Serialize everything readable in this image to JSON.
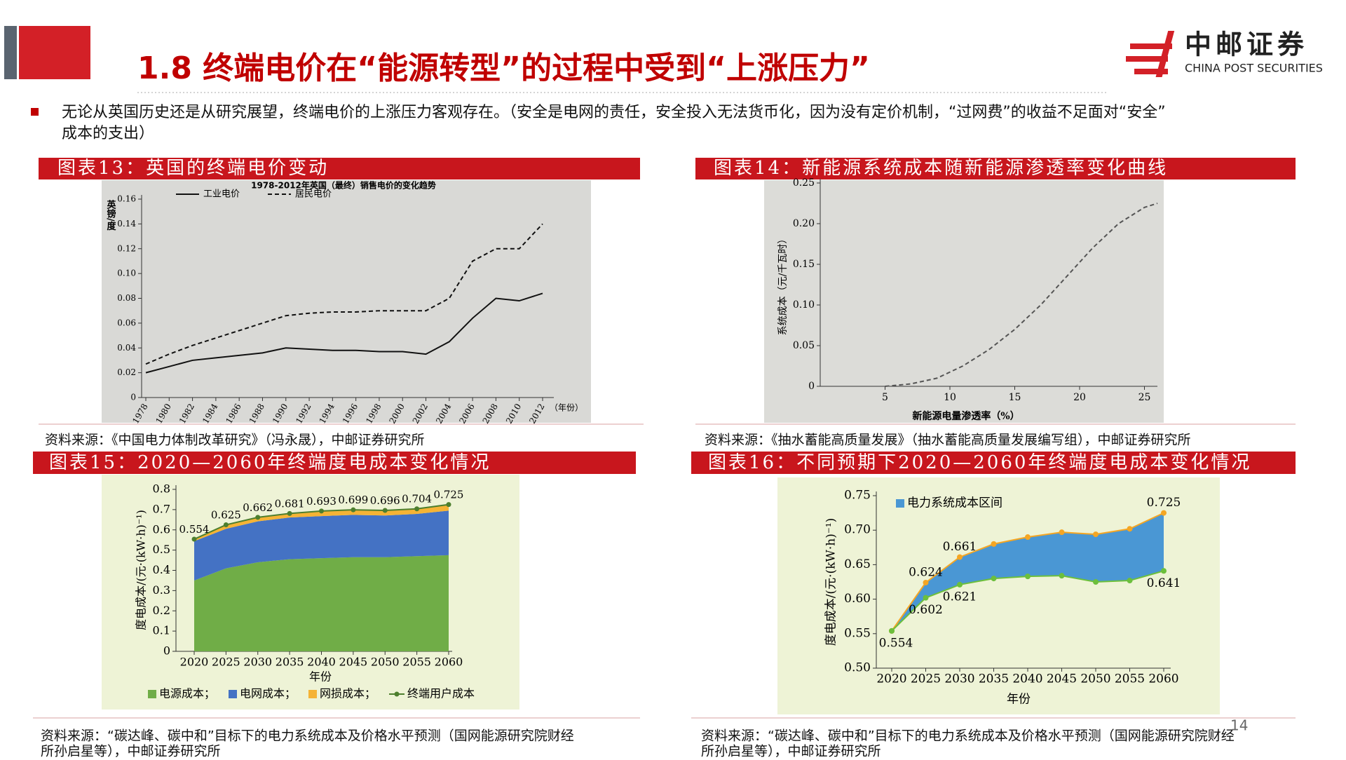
{
  "header": {
    "title": "1.8 终端电价在“能源转型”的过程中受到“上涨压力”",
    "logo_cn": "中邮证券",
    "logo_en": "CHINA POST SECURITIES"
  },
  "bullet": [
    "无论从英国历史还是从研究展望，终端电价的上涨压力客观存在。（安全是电网的责任，安全投入无法货币化，因为没有定价机制，“过网费”的收益不足面对“安全”",
    "成本的支出）"
  ],
  "panels": [
    {
      "caption": "图表13：英国的终端电价变动",
      "source": [
        "资料来源：《中国电力体制改革研究》（冯永晟），中邮证券研究所"
      ]
    },
    {
      "caption": "图表14：新能源系统成本随新能源渗透率变化曲线",
      "source": [
        "资料来源：《抽水蓄能高质量发展》（抽水蓄能高质量发展编写组），中邮证券研究所"
      ]
    },
    {
      "caption": "图表15：2020—2060年终端度电成本变化情况",
      "source": [
        "资料来源：“碳达峰、碳中和”目标下的电力系统成本及价格水平预测（国网能源研究院财经",
        "所孙启星等），中邮证券研究所"
      ]
    },
    {
      "caption": "图表16：不同预期下2020—2060年终端度电成本变化情况",
      "source": [
        "资料来源：“碳达峰、碳中和”目标下的电力系统成本及价格水平预测（国网能源研究院财经",
        "所孙启星等），中邮证券研究所"
      ]
    }
  ],
  "page_number": "14",
  "chart_data": [
    {
      "type": "line",
      "title": "1978-2012年英国（最终）销售电价的变化趋势",
      "y_label": "英镑/度",
      "x_label": "（年份）",
      "categories": [
        "1978",
        "1980",
        "1982",
        "1984",
        "1986",
        "1988",
        "1990",
        "1992",
        "1994",
        "1996",
        "1998",
        "2000",
        "2002",
        "2004",
        "2006",
        "2008",
        "2010",
        "2012"
      ],
      "ylim": [
        0,
        0.16
      ],
      "yticks": [
        0,
        0.02,
        0.04,
        0.06,
        0.08,
        {
          "value": 0.1,
          "label": "0.10"
        },
        0.12,
        0.14,
        0.16
      ],
      "series": [
        {
          "name": "工业电价",
          "color": "#111111",
          "dash": false,
          "values": [
            0.02,
            0.025,
            0.03,
            0.032,
            0.034,
            0.036,
            0.04,
            0.039,
            0.038,
            0.038,
            0.037,
            0.037,
            0.035,
            0.045,
            0.064,
            0.08,
            0.078,
            0.084
          ]
        },
        {
          "name": "居民电价",
          "color": "#111111",
          "dash": true,
          "values": [
            0.027,
            0.035,
            0.042,
            0.048,
            0.054,
            0.06,
            0.066,
            0.068,
            0.069,
            0.069,
            0.07,
            0.07,
            0.07,
            0.08,
            0.11,
            0.12,
            0.12,
            0.14
          ]
        }
      ]
    },
    {
      "type": "line",
      "y_label": "系统成本（元/千瓦时）",
      "x_label": "新能源电量渗透率（%）",
      "xlim": [
        0,
        26
      ],
      "xticks": [
        5,
        10,
        15,
        20,
        25
      ],
      "ylim": [
        0,
        0.25
      ],
      "yticks": [
        0,
        0.05,
        {
          "value": 0.1,
          "label": "0.10"
        },
        0.15,
        {
          "value": 0.2,
          "label": "0.20"
        },
        0.25
      ],
      "series": [
        {
          "color": "#555555",
          "dash": true,
          "x": [
            5,
            7,
            9,
            11,
            13,
            15,
            17,
            19,
            21,
            23,
            25,
            26
          ],
          "values": [
            0,
            0.003,
            0.01,
            0.025,
            0.045,
            0.07,
            0.1,
            0.135,
            0.17,
            0.2,
            0.22,
            0.225
          ]
        }
      ]
    },
    {
      "type": "stacked_area",
      "y_label": "度电成本/(元·(kW·h)⁻¹)",
      "x_label": "年份",
      "categories": [
        "2020",
        "2025",
        "2030",
        "2035",
        "2040",
        "2045",
        "2050",
        "2055",
        "2060"
      ],
      "ylim": [
        0,
        0.8
      ],
      "yticks": [
        0,
        0.1,
        0.2,
        0.3,
        0.4,
        0.5,
        0.6,
        0.7,
        0.8
      ],
      "series": [
        {
          "name": "电源成本；",
          "color": "#70ad47",
          "values": [
            0.35,
            0.41,
            0.44,
            0.455,
            0.46,
            0.465,
            0.465,
            0.47,
            0.475
          ]
        },
        {
          "name": "电网成本；",
          "color": "#4472c4",
          "values": [
            0.194,
            0.195,
            0.202,
            0.206,
            0.208,
            0.209,
            0.206,
            0.209,
            0.22
          ]
        },
        {
          "name": "网损成本；",
          "color": "#f5b335",
          "values": [
            0.01,
            0.02,
            0.02,
            0.02,
            0.025,
            0.025,
            0.025,
            0.025,
            0.03
          ]
        },
        {
          "name": "终端用户成本",
          "color": "#4d7f2e",
          "kind": "line",
          "values": [
            0.554,
            0.625,
            0.662,
            0.681,
            0.693,
            0.699,
            0.696,
            0.704,
            0.725
          ]
        }
      ]
    },
    {
      "type": "range_area",
      "y_label": "度电成本/(元·(kW·h)⁻¹)",
      "x_label": "年份",
      "categories": [
        "2020",
        "2025",
        "2030",
        "2035",
        "2040",
        "2045",
        "2050",
        "2055",
        "2060"
      ],
      "ylim": [
        0.5,
        0.75
      ],
      "yticks": [
        {
          "value": 0.5,
          "label": "0.50"
        },
        0.55,
        {
          "value": 0.6,
          "label": "0.60"
        },
        0.65,
        {
          "value": 0.7,
          "label": "0.70"
        },
        0.75
      ],
      "band": {
        "name": "电力系统成本区间",
        "color": "#4a97d4",
        "upper_color": "#f5a623",
        "lower_color": "#6cbf3c",
        "upper": [
          0.554,
          0.624,
          0.661,
          0.68,
          0.69,
          0.697,
          0.694,
          0.702,
          0.725
        ],
        "lower": [
          0.554,
          0.602,
          0.621,
          0.63,
          0.633,
          0.634,
          0.625,
          0.627,
          0.641
        ],
        "upper_value_labels": [
          null,
          "0.624",
          "0.661",
          null,
          null,
          null,
          null,
          null,
          "0.725"
        ],
        "lower_value_labels": [
          "0.554",
          "0.602",
          "0.621",
          null,
          null,
          null,
          null,
          null,
          "0.641"
        ]
      }
    }
  ]
}
